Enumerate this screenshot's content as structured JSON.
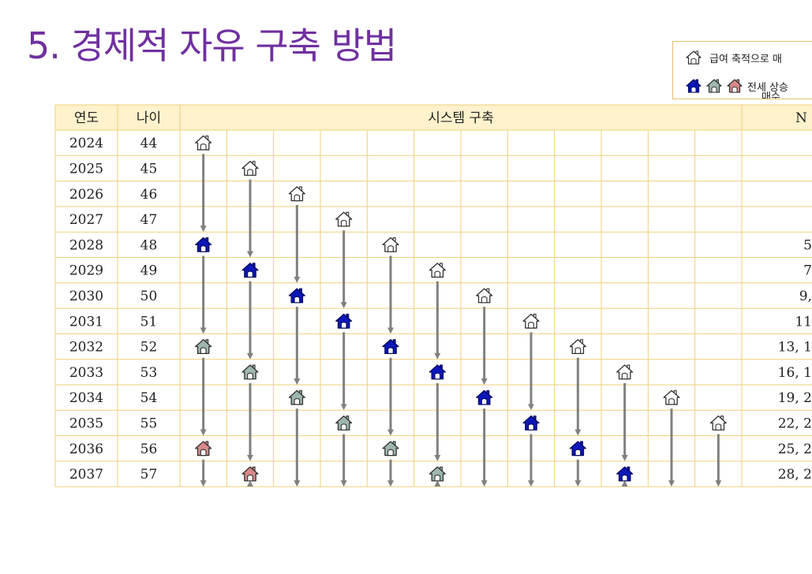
{
  "title": "5. 경제적 자유 구축 방법",
  "legend": {
    "salary_label": "급여 축적으로 매",
    "jeonse_label": "전세 상승",
    "jeonse_label_2": "매수"
  },
  "table": {
    "headers": {
      "year": "연도",
      "age": "나이",
      "system": "시스템 구축",
      "last": "N"
    },
    "rows": [
      {
        "year": "2024",
        "age": "44",
        "last": ""
      },
      {
        "year": "2025",
        "age": "45",
        "last": ""
      },
      {
        "year": "2026",
        "age": "46",
        "last": ""
      },
      {
        "year": "2027",
        "age": "47",
        "last": ""
      },
      {
        "year": "2028",
        "age": "48",
        "last": "5"
      },
      {
        "year": "2029",
        "age": "49",
        "last": "7"
      },
      {
        "year": "2030",
        "age": "50",
        "last": "9,"
      },
      {
        "year": "2031",
        "age": "51",
        "last": "11"
      },
      {
        "year": "2032",
        "age": "52",
        "last": "13, 1"
      },
      {
        "year": "2033",
        "age": "53",
        "last": "16, 1"
      },
      {
        "year": "2034",
        "age": "54",
        "last": "19, 2"
      },
      {
        "year": "2035",
        "age": "55",
        "last": "22, 2"
      },
      {
        "year": "2036",
        "age": "56",
        "last": "25, 2"
      },
      {
        "year": "2037",
        "age": "57",
        "last": "28, 2"
      }
    ],
    "houses": [
      {
        "col": 0,
        "row": 0,
        "type": "white"
      },
      {
        "col": 0,
        "row": 4,
        "type": "blue"
      },
      {
        "col": 0,
        "row": 8,
        "type": "gray"
      },
      {
        "col": 0,
        "row": 12,
        "type": "pink"
      },
      {
        "col": 1,
        "row": 1,
        "type": "white"
      },
      {
        "col": 1,
        "row": 5,
        "type": "blue"
      },
      {
        "col": 1,
        "row": 9,
        "type": "gray"
      },
      {
        "col": 1,
        "row": 13,
        "type": "pink"
      },
      {
        "col": 2,
        "row": 2,
        "type": "white"
      },
      {
        "col": 2,
        "row": 6,
        "type": "blue"
      },
      {
        "col": 2,
        "row": 10,
        "type": "gray"
      },
      {
        "col": 3,
        "row": 3,
        "type": "white"
      },
      {
        "col": 3,
        "row": 7,
        "type": "blue"
      },
      {
        "col": 3,
        "row": 11,
        "type": "gray"
      },
      {
        "col": 4,
        "row": 4,
        "type": "white"
      },
      {
        "col": 4,
        "row": 8,
        "type": "blue"
      },
      {
        "col": 4,
        "row": 12,
        "type": "gray"
      },
      {
        "col": 5,
        "row": 5,
        "type": "white"
      },
      {
        "col": 5,
        "row": 9,
        "type": "blue"
      },
      {
        "col": 5,
        "row": 13,
        "type": "gray"
      },
      {
        "col": 6,
        "row": 6,
        "type": "white"
      },
      {
        "col": 6,
        "row": 10,
        "type": "blue"
      },
      {
        "col": 7,
        "row": 7,
        "type": "white"
      },
      {
        "col": 7,
        "row": 11,
        "type": "blue"
      },
      {
        "col": 8,
        "row": 8,
        "type": "white"
      },
      {
        "col": 8,
        "row": 12,
        "type": "blue"
      },
      {
        "col": 9,
        "row": 9,
        "type": "white"
      },
      {
        "col": 9,
        "row": 13,
        "type": "blue"
      },
      {
        "col": 10,
        "row": 10,
        "type": "white"
      },
      {
        "col": 11,
        "row": 11,
        "type": "white"
      }
    ]
  },
  "colors": {
    "title": "#7030a0",
    "border": "#f2cf7a",
    "header_bg": "#fff2cc",
    "arrow": "#808080",
    "house_white": "#ffffff",
    "house_blue": "#0b17b8",
    "house_gray": "#9fb6b0",
    "house_pink": "#d98888"
  }
}
